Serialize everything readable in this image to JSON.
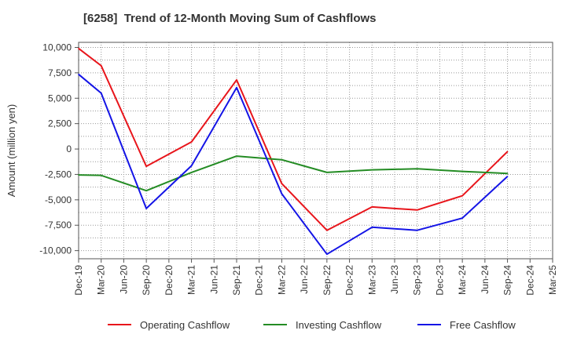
{
  "chart_data": {
    "type": "line",
    "title": "[6258]  Trend of 12-Month Moving Sum of Cashflows",
    "ylabel": "Amount (million yen)",
    "xlabel": "",
    "categories": [
      "Dec-19",
      "Mar-20",
      "Jun-20",
      "Sep-20",
      "Dec-20",
      "Mar-21",
      "Jun-21",
      "Sep-21",
      "Dec-21",
      "Mar-22",
      "Jun-22",
      "Sep-22",
      "Dec-22",
      "Mar-23",
      "Jun-23",
      "Sep-23",
      "Dec-23",
      "Mar-24",
      "Jun-24",
      "Sep-24",
      "Dec-24",
      "Mar-25"
    ],
    "ylim": [
      -10800,
      10500
    ],
    "yticks": [
      10000,
      7500,
      5000,
      2500,
      0,
      -2500,
      -5000,
      -7500,
      -10000
    ],
    "ytick_labels": [
      "10,000",
      "7,500",
      "5,000",
      "2,500",
      "0",
      "-2,500",
      "-5,000",
      "-7,500",
      "-10,000"
    ],
    "grid": true,
    "legend_position": "bottom",
    "series": [
      {
        "name": "Operating Cashflow",
        "color": "#e8151b",
        "values": [
          9900,
          8200,
          null,
          -1700,
          null,
          700,
          null,
          6800,
          null,
          -3400,
          null,
          -8000,
          null,
          -5700,
          null,
          -6000,
          null,
          -4600,
          null,
          -250,
          null,
          null
        ]
      },
      {
        "name": "Investing Cashflow",
        "color": "#248c24",
        "values": [
          -2550,
          -2600,
          null,
          -4100,
          null,
          -2300,
          null,
          -700,
          null,
          -1050,
          null,
          -2300,
          null,
          -2050,
          null,
          -1950,
          null,
          -2200,
          null,
          -2400,
          null,
          null
        ]
      },
      {
        "name": "Free Cashflow",
        "color": "#1414e6",
        "values": [
          7350,
          5500,
          null,
          -5850,
          null,
          -1650,
          null,
          6050,
          null,
          -4400,
          null,
          -10350,
          null,
          -7700,
          null,
          -8000,
          null,
          -6800,
          null,
          -2700,
          null,
          null
        ]
      }
    ]
  }
}
